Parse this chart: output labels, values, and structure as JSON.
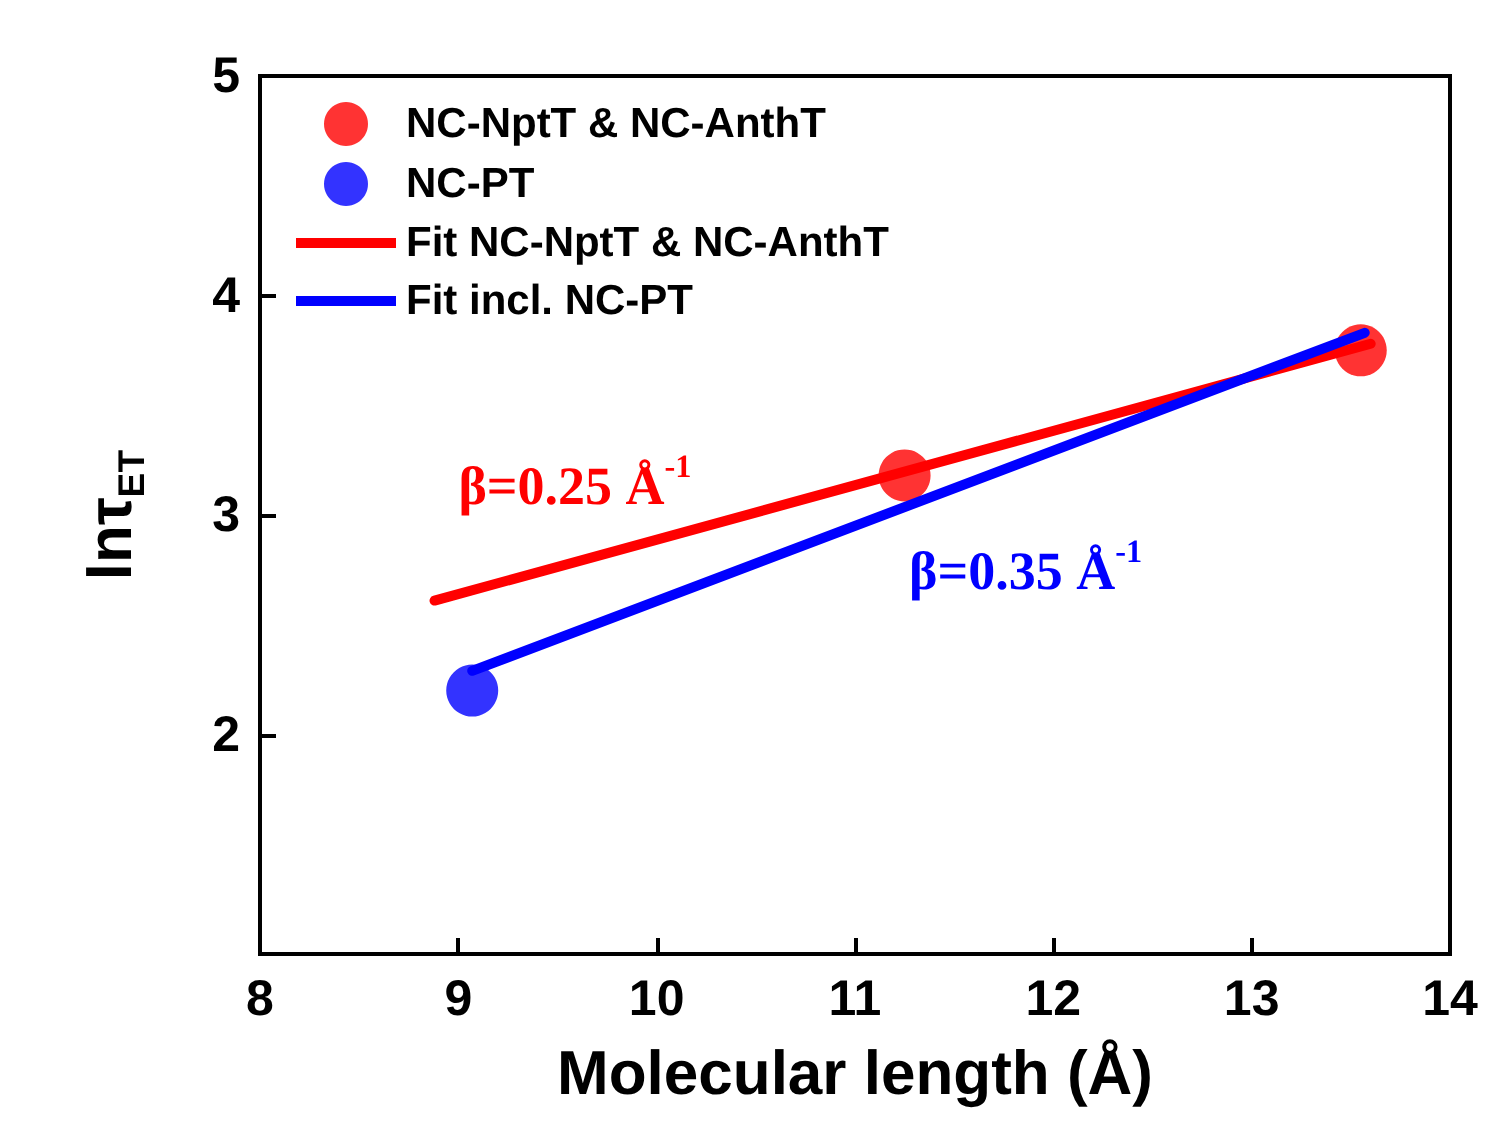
{
  "chart_data": {
    "type": "scatter",
    "xlabel": "Molecular length (Å)",
    "ylabel": "lnτ$_{ET}$",
    "xlim": [
      8,
      14
    ],
    "xticks": [
      8,
      9,
      10,
      11,
      12,
      13,
      14
    ],
    "ylim": [
      1,
      5
    ],
    "yticks": [
      2,
      3,
      4,
      5
    ],
    "legend": "top left",
    "grid": false,
    "series": [
      {
        "name": "NC-NptT & NC-AnthT",
        "marker": "circle",
        "color": "#ff0000",
        "x": [
          11.25,
          13.55
        ],
        "values": [
          3.18,
          3.75
        ]
      },
      {
        "name": "NC-PT",
        "marker": "circle",
        "color": "#0000ff",
        "x": [
          9.07
        ],
        "values": [
          2.2
        ]
      },
      {
        "name": "Fit NC-NptT & NC-AnthT",
        "type": "line",
        "color": "#ff0000",
        "x": [
          8.88,
          13.6
        ],
        "values": [
          2.61,
          3.78
        ]
      },
      {
        "name": "Fit incl. NC-PT",
        "type": "line",
        "color": "#0000ff",
        "x": [
          9.07,
          13.57
        ],
        "values": [
          2.29,
          3.83
        ]
      }
    ],
    "annotations": [
      "β=0.25 Å$^{-1}$",
      "β=0.35 Å$^{-1}$"
    ]
  }
}
